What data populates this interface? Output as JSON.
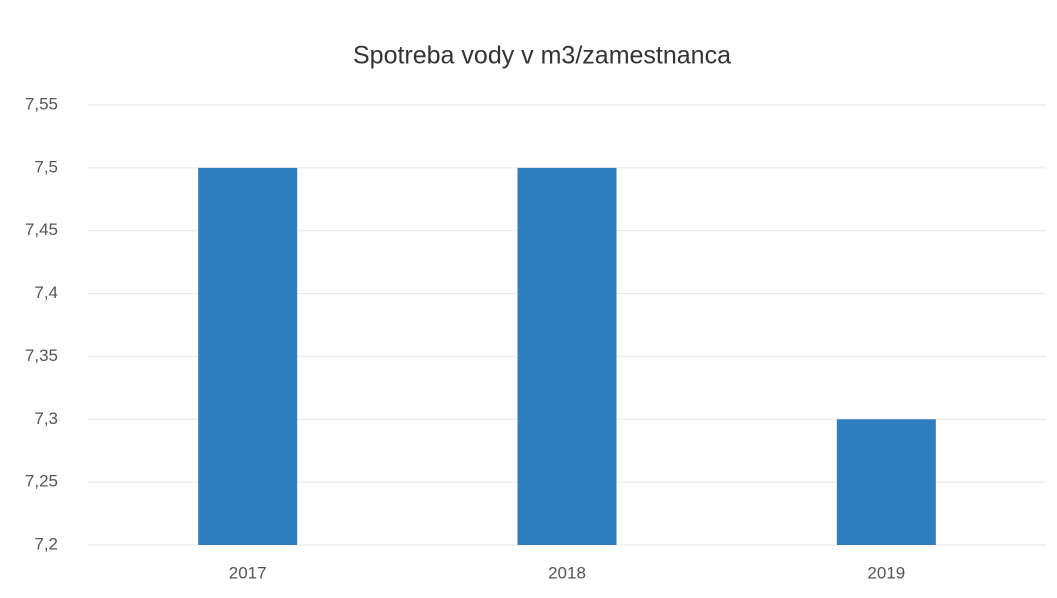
{
  "chart_data": {
    "type": "bar",
    "title": "Spotreba vody v m3/zamestnanca",
    "categories": [
      "2017",
      "2018",
      "2019"
    ],
    "values": [
      7.5,
      7.5,
      7.3
    ],
    "color": "#2e7dbf",
    "ylim": [
      7.2,
      7.55
    ],
    "yticks": [
      {
        "value": 7.2,
        "label": "7,2"
      },
      {
        "value": 7.25,
        "label": "7,25"
      },
      {
        "value": 7.3,
        "label": "7,3"
      },
      {
        "value": 7.35,
        "label": "7,35"
      },
      {
        "value": 7.4,
        "label": "7,4"
      },
      {
        "value": 7.45,
        "label": "7,45"
      },
      {
        "value": 7.5,
        "label": "7,5"
      },
      {
        "value": 7.55,
        "label": "7,55"
      }
    ],
    "grid": true
  }
}
